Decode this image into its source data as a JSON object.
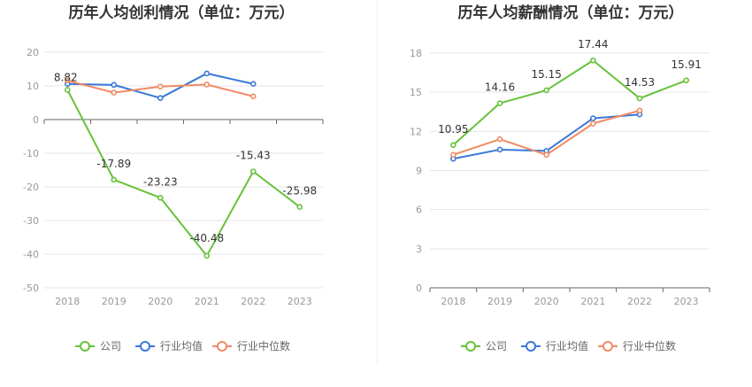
{
  "colors": {
    "company": "#67c23a",
    "industry_avg": "#3a78d8",
    "industry_median": "#f08a64",
    "grid": "#e6e6ea",
    "axis": "#666666",
    "text": "#333333",
    "tick": "#999999",
    "divider": "#f0f0f0"
  },
  "legend": {
    "company": "公司",
    "industry_avg": "行业均值",
    "industry_median": "行业中位数"
  },
  "chart_data": [
    {
      "type": "line",
      "title": "历年人均创利情况（单位：万元）",
      "categories": [
        "2018",
        "2019",
        "2020",
        "2021",
        "2022",
        "2023"
      ],
      "ylim": [
        -50,
        20
      ],
      "yticks": [
        "20",
        "10",
        "0",
        "-10",
        "-20",
        "-30",
        "-40",
        "-50"
      ],
      "ytick_values": [
        20,
        10,
        0,
        -10,
        -20,
        -30,
        -40,
        -50
      ],
      "grid": true,
      "legend_position": "bottom",
      "series": [
        {
          "name": "公司",
          "key": "company",
          "values": [
            8.82,
            -17.89,
            -23.23,
            -40.48,
            -15.43,
            -25.98
          ],
          "labels": [
            "8.82",
            "-17.89",
            "-23.23",
            "-40.48",
            "-15.43",
            "-25.98"
          ]
        },
        {
          "name": "行业均值",
          "key": "industry_avg",
          "values": [
            10.6,
            10.3,
            6.4,
            13.7,
            10.6,
            null
          ]
        },
        {
          "name": "行业中位数",
          "key": "industry_median",
          "values": [
            11.6,
            8.0,
            9.8,
            10.4,
            6.9,
            null
          ]
        }
      ]
    },
    {
      "type": "line",
      "title": "历年人均薪酬情况（单位：万元）",
      "categories": [
        "2018",
        "2019",
        "2020",
        "2021",
        "2022",
        "2023"
      ],
      "ylim": [
        0,
        18
      ],
      "yticks": [
        "18",
        "15",
        "12",
        "9",
        "6",
        "3",
        "0"
      ],
      "ytick_values": [
        18,
        15,
        12,
        9,
        6,
        3,
        0
      ],
      "grid": true,
      "legend_position": "bottom",
      "series": [
        {
          "name": "公司",
          "key": "company",
          "values": [
            10.95,
            14.16,
            15.15,
            17.44,
            14.53,
            15.91
          ],
          "labels": [
            "10.95",
            "14.16",
            "15.15",
            "17.44",
            "14.53",
            "15.91"
          ]
        },
        {
          "name": "行业均值",
          "key": "industry_avg",
          "values": [
            9.9,
            10.6,
            10.5,
            13.0,
            13.3,
            null
          ]
        },
        {
          "name": "行业中位数",
          "key": "industry_median",
          "values": [
            10.2,
            11.4,
            10.2,
            12.6,
            13.6,
            null
          ]
        }
      ]
    }
  ]
}
